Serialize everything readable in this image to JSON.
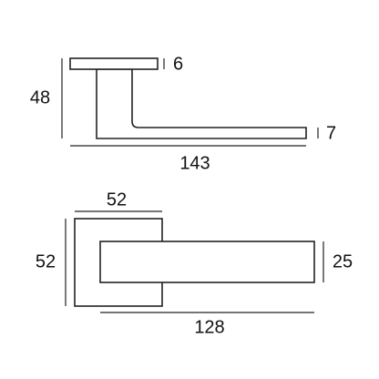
{
  "side_view": {
    "rose_thickness": "6",
    "height": "48",
    "lever_thickness": "7",
    "length": "143"
  },
  "top_view": {
    "rose_width": "52",
    "rose_height": "52",
    "lever_width": "25",
    "lever_length": "128"
  }
}
